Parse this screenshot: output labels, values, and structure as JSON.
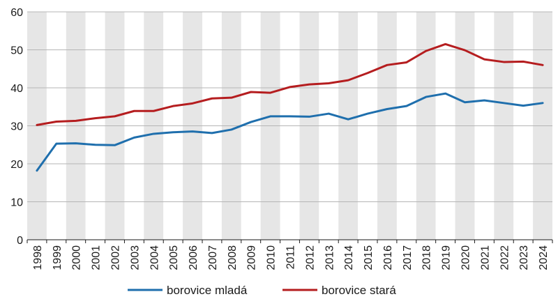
{
  "chart_data": {
    "type": "line",
    "title": "",
    "xlabel": "",
    "ylabel": "",
    "ylim": [
      0,
      60
    ],
    "yticks": [
      0,
      10,
      20,
      30,
      40,
      50,
      60
    ],
    "grid": "horizontal",
    "alternating_column_shading": true,
    "legend_position": "bottom-center",
    "x": [
      "1998",
      "1999",
      "2000",
      "2001",
      "2002",
      "2003",
      "2004",
      "2005",
      "2006",
      "2007",
      "2008",
      "2009",
      "2010",
      "2011",
      "2012",
      "2013",
      "2014",
      "2015",
      "2016",
      "2017",
      "2018",
      "2019",
      "2020",
      "2021",
      "2022",
      "2023",
      "2024"
    ],
    "series": [
      {
        "name": "borovice mladá",
        "color": "#1f6fad",
        "values": [
          18.2,
          25.3,
          25.4,
          25.0,
          24.9,
          26.9,
          27.9,
          28.3,
          28.5,
          28.1,
          29.0,
          31.0,
          32.5,
          32.5,
          32.4,
          33.2,
          31.7,
          33.2,
          34.4,
          35.2,
          37.6,
          38.5,
          36.2,
          36.7,
          36.0,
          35.3,
          36.0
        ]
      },
      {
        "name": "borovice stará",
        "color": "#b51d1f",
        "values": [
          30.2,
          31.1,
          31.3,
          32.0,
          32.5,
          33.9,
          33.9,
          35.2,
          35.9,
          37.2,
          37.4,
          38.9,
          38.7,
          40.2,
          40.9,
          41.2,
          42.0,
          43.9,
          46.0,
          46.7,
          49.7,
          51.5,
          49.9,
          47.5,
          46.8,
          46.9,
          46.0
        ]
      }
    ]
  }
}
